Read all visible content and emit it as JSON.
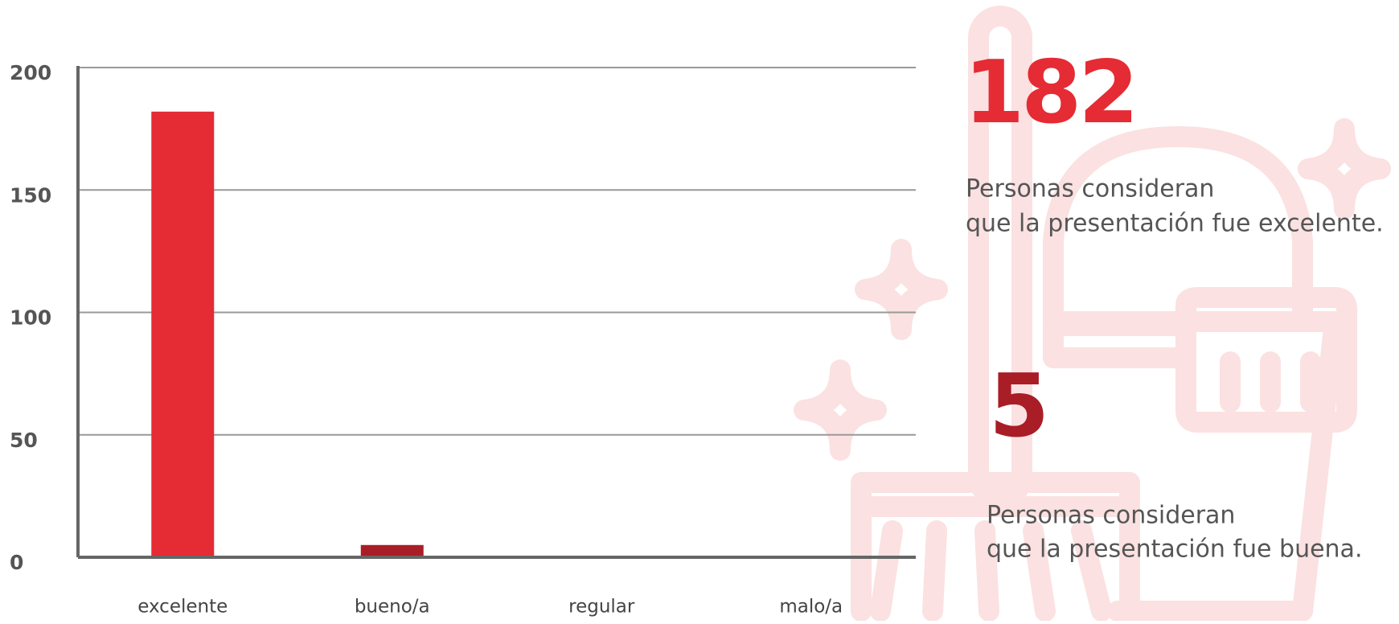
{
  "chart_data": {
    "type": "bar",
    "categories": [
      "excelente",
      "bueno/a",
      "regular",
      "malo/a"
    ],
    "values": [
      182,
      5,
      0,
      0
    ],
    "colors": [
      "#e52b34",
      "#a91d27",
      "#e52b34",
      "#e52b34"
    ],
    "ylim": [
      0,
      200
    ],
    "yticks": [
      0,
      50,
      100,
      150,
      200
    ],
    "grid": true,
    "callouts": [
      {
        "value": 182,
        "color": "#e52b34",
        "lines": [
          "Personas consideran",
          "que la presentación fue excelente."
        ]
      },
      {
        "value": 5,
        "color": "#a91d27",
        "lines": [
          "Personas consideran",
          "que la presentación fue buena."
        ]
      }
    ]
  }
}
